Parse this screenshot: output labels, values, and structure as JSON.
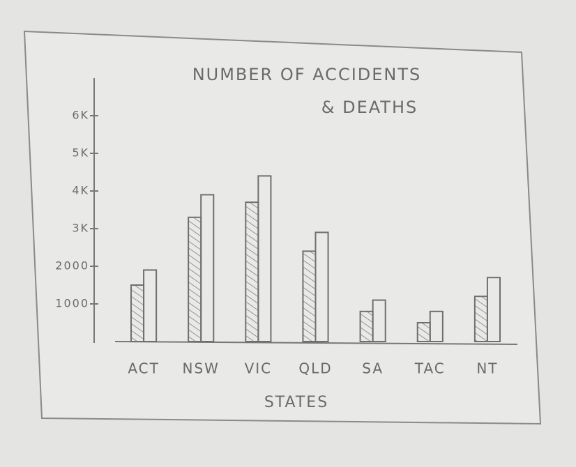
{
  "chart_data": {
    "type": "bar",
    "title": "NUMBER OF ACCIDENTS",
    "subtitle": "& DEATHS",
    "x_label": "STATES",
    "categories": [
      "ACT",
      "NSW",
      "VIC",
      "QLD",
      "SA",
      "TAC",
      "NT"
    ],
    "series": [
      {
        "color": "#6f6f6f",
        "pattern": "hatch",
        "values": [
          1500,
          3300,
          3700,
          2400,
          800,
          500,
          1200
        ]
      },
      {
        "color": "#6f6f6f",
        "pattern": "outline",
        "values": [
          1900,
          3900,
          4400,
          2900,
          1100,
          800,
          1700
        ]
      }
    ],
    "ylim": [
      0,
      7000
    ],
    "yticks": [
      1000,
      2000,
      {
        "value": 3000,
        "label": "3K"
      },
      {
        "value": 4000,
        "label": "4K"
      },
      {
        "value": 5000,
        "label": "5K"
      },
      {
        "value": 6000,
        "label": "6K"
      }
    ]
  }
}
